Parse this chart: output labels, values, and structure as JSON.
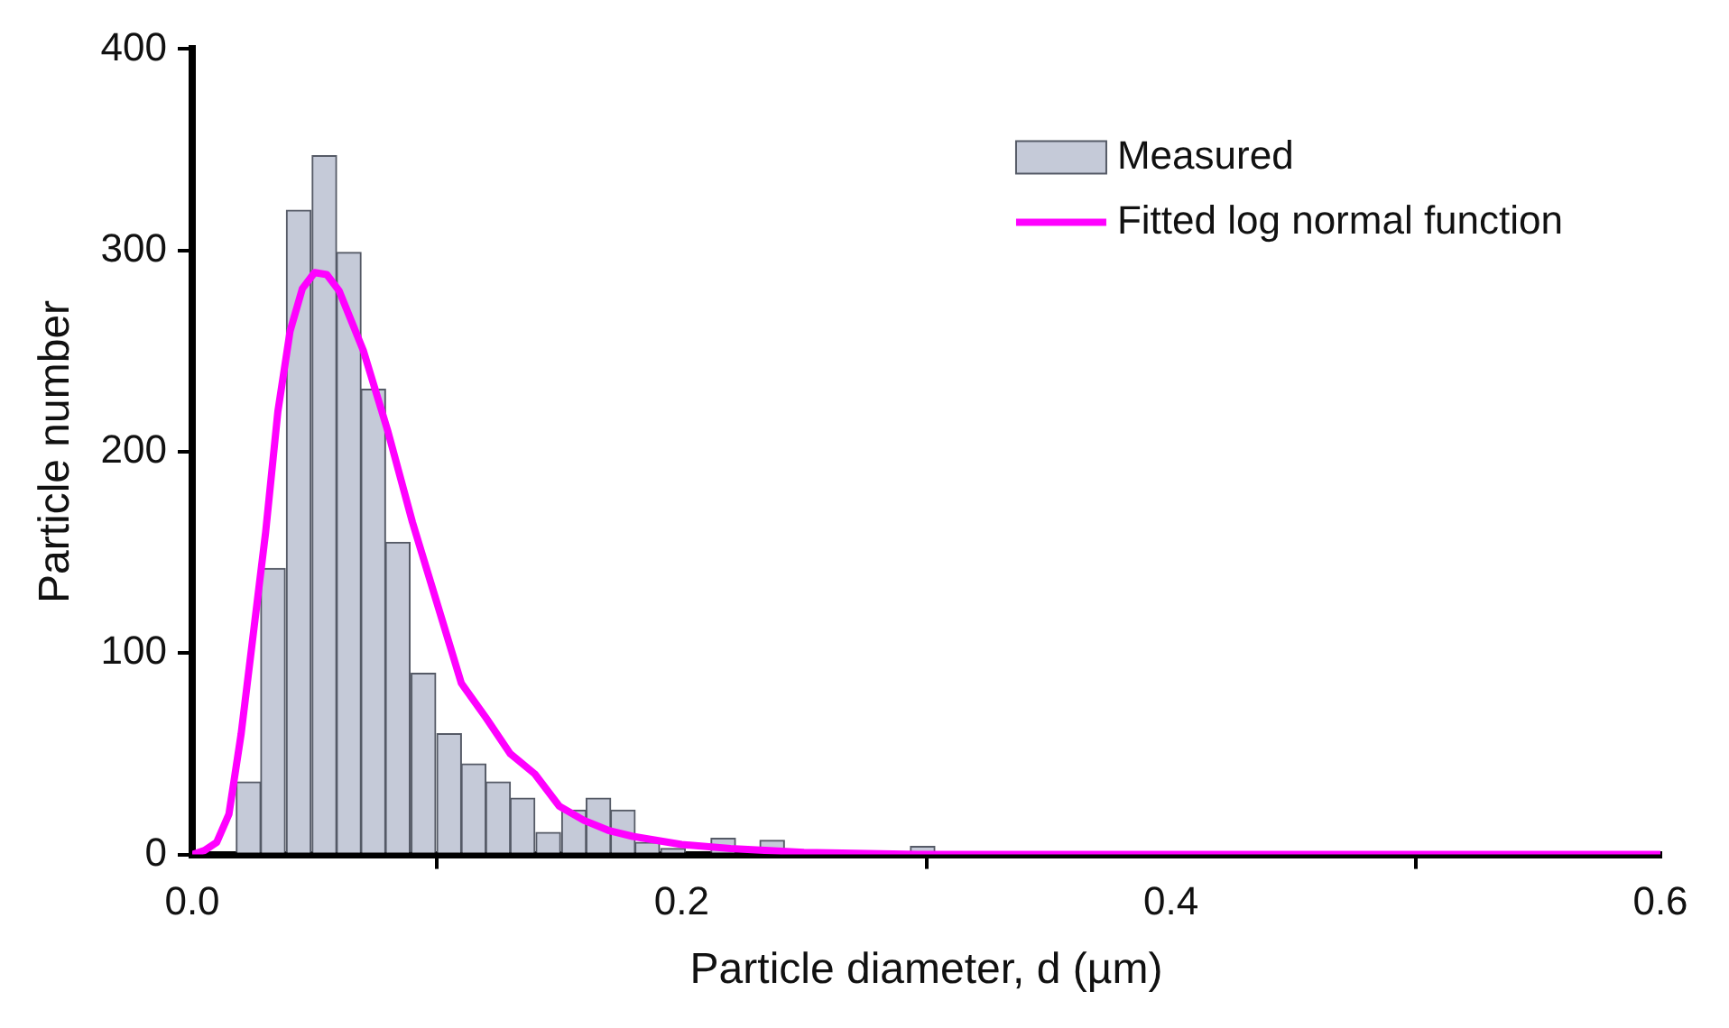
{
  "chart_data": {
    "type": "histogram",
    "xlabel": "Particle diameter, d (µm)",
    "ylabel": "Particle number",
    "bins": [
      0.018,
      0.028,
      0.038,
      0.049,
      0.059,
      0.069,
      0.079,
      0.089,
      0.1,
      0.11,
      0.12,
      0.13,
      0.14,
      0.151,
      0.161,
      0.171,
      0.181,
      0.191,
      0.202,
      0.212,
      0.222,
      0.232,
      0.242,
      0.253,
      0.263,
      0.273,
      0.283,
      0.293,
      0.304
    ],
    "series": [
      {
        "name": "Measured",
        "color": "#c5cad8",
        "values": [
          36,
          142,
          320,
          347,
          299,
          231,
          155,
          90,
          60,
          45,
          36,
          28,
          11,
          22,
          28,
          22,
          6,
          3,
          0,
          8,
          0,
          7,
          0,
          0,
          1,
          1,
          0,
          4
        ]
      },
      {
        "name": "Fitted log normal function",
        "type": "line",
        "color": "#ff00ff",
        "x": [
          0,
          0.005,
          0.01,
          0.015,
          0.02,
          0.025,
          0.03,
          0.035,
          0.04,
          0.045,
          0.05,
          0.055,
          0.06,
          0.07,
          0.08,
          0.09,
          0.1,
          0.11,
          0.12,
          0.13,
          0.14,
          0.15,
          0.16,
          0.17,
          0.18,
          0.2,
          0.22,
          0.25,
          0.3,
          0.4,
          0.6
        ],
        "values": [
          0,
          2,
          6,
          20,
          60,
          110,
          160,
          220,
          260,
          281,
          289,
          288,
          280,
          250,
          210,
          165,
          125,
          85,
          68,
          50,
          40,
          24,
          17,
          12,
          9,
          5,
          3,
          1,
          0,
          0,
          0
        ]
      }
    ],
    "xlim": [
      0,
      0.6
    ],
    "xticks": [
      {
        "value": 0,
        "label": "0.0"
      },
      0.2,
      0.4,
      0.6
    ],
    "ylim": [
      0,
      400
    ],
    "yticks": [
      0,
      100,
      200,
      300,
      400
    ],
    "grid": false,
    "legend": "top right",
    "marker": "none"
  }
}
